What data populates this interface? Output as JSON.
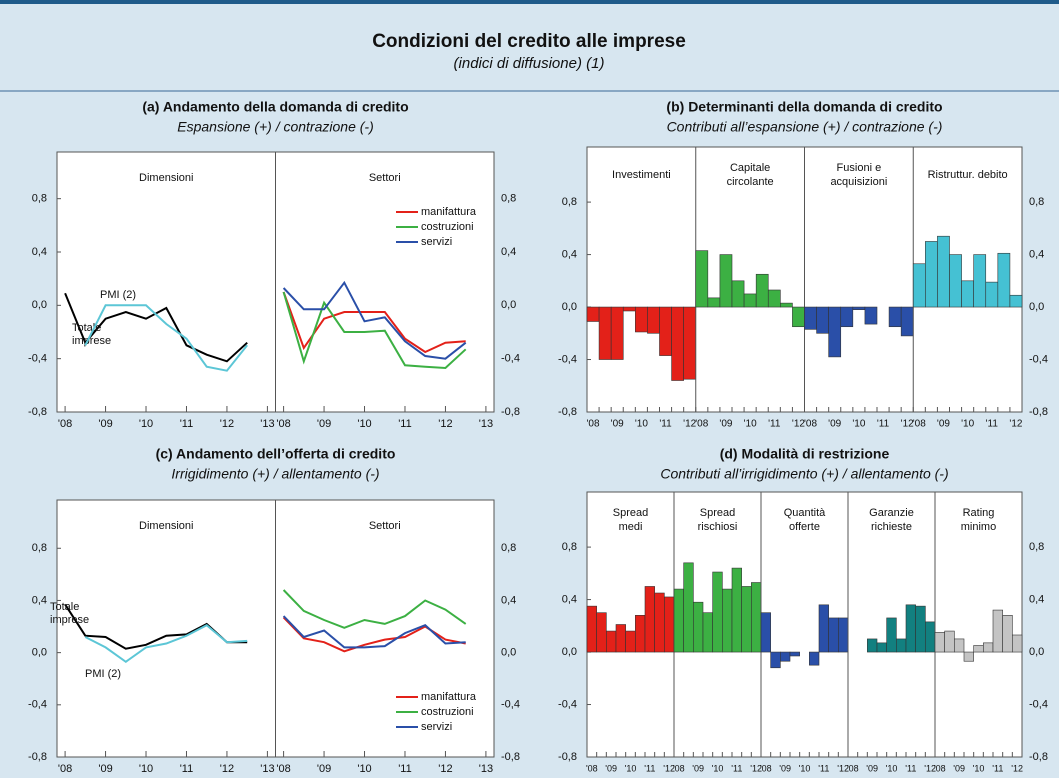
{
  "header": {
    "title": "Condizioni del credito alle imprese",
    "subtitle": "(indici di diffusione) (1)"
  },
  "chart_data": [
    {
      "type": "line",
      "title": "(a) Andamento della domanda di credito",
      "subtitle": "Espansione (+) / contrazione (-)",
      "ylim": [
        -0.8,
        1.15
      ],
      "yticks": [
        {
          "value": -0.8,
          "label": "-0,8"
        },
        {
          "value": -0.4,
          "label": "-0,4"
        },
        {
          "value": 0,
          "label": "0,0"
        },
        {
          "value": 0.4,
          "label": "0,4"
        },
        {
          "value": 0.8,
          "label": "0,8"
        }
      ],
      "xlim": [
        2007.8,
        2013.2
      ],
      "xticks": [
        {
          "value": 2008,
          "label": "'08"
        },
        {
          "value": 2009,
          "label": "'09"
        },
        {
          "value": 2010,
          "label": "'10"
        },
        {
          "value": 2011,
          "label": "'11"
        },
        {
          "value": 2012,
          "label": "'12"
        },
        {
          "value": 2013,
          "label": "'13"
        }
      ],
      "subplots": [
        {
          "label": "Dimensioni",
          "legend": null,
          "x": [
            2008,
            2008.5,
            2009,
            2009.5,
            2010,
            2010.5,
            2011,
            2011.5,
            2012,
            2012.5
          ],
          "series": [
            {
              "name": "Totale imprese",
              "color": "#000000",
              "values": [
                0.09,
                -0.28,
                -0.1,
                -0.05,
                -0.1,
                -0.02,
                -0.3,
                -0.37,
                -0.42,
                -0.28
              ]
            },
            {
              "name": "PMI (2)",
              "color": "#5cc6d6",
              "values": [
                null,
                -0.3,
                0.0,
                0.0,
                0.0,
                -0.14,
                -0.25,
                -0.46,
                -0.49,
                -0.3
              ]
            }
          ]
        },
        {
          "label": "Settori",
          "legend": "upper right",
          "x": [
            2008,
            2008.5,
            2009,
            2009.5,
            2010,
            2010.5,
            2011,
            2011.5,
            2012,
            2012.5
          ],
          "series": [
            {
              "name": "manifattura",
              "color": "#e32119",
              "values": [
                0.1,
                -0.32,
                -0.1,
                -0.05,
                -0.05,
                -0.05,
                -0.25,
                -0.35,
                -0.28,
                -0.27
              ]
            },
            {
              "name": "costruzioni",
              "color": "#3cb043",
              "values": [
                0.1,
                -0.42,
                0.02,
                -0.2,
                -0.2,
                -0.19,
                -0.45,
                -0.46,
                -0.47,
                -0.33
              ]
            },
            {
              "name": "servizi",
              "color": "#2a4fa8",
              "values": [
                0.13,
                -0.03,
                -0.03,
                0.17,
                -0.12,
                -0.09,
                -0.27,
                -0.38,
                -0.4,
                -0.28
              ]
            }
          ]
        }
      ]
    },
    {
      "type": "bar",
      "title": "(b) Determinanti della domanda di credito",
      "subtitle": "Contributi all’espansione (+) / contrazione (-)",
      "ylim": [
        -0.8,
        1.22
      ],
      "yticks": [
        {
          "value": -0.8,
          "label": "-0,8"
        },
        {
          "value": -0.4,
          "label": "-0,4"
        },
        {
          "value": 0,
          "label": "0,0"
        },
        {
          "value": 0.4,
          "label": "0,4"
        },
        {
          "value": 0.8,
          "label": "0,8"
        }
      ],
      "categories": [
        "'08",
        null,
        "'09",
        null,
        "'10",
        null,
        "'11",
        null,
        "'12"
      ],
      "groups": [
        {
          "label": [
            "Investimenti"
          ],
          "color": "#e32119",
          "values": [
            -0.11,
            -0.4,
            -0.4,
            -0.03,
            -0.19,
            -0.2,
            -0.37,
            -0.56,
            -0.55
          ]
        },
        {
          "label": [
            "Capitale",
            "circolante"
          ],
          "color": "#3cb043",
          "values": [
            0.43,
            0.07,
            0.4,
            0.2,
            0.1,
            0.25,
            0.13,
            0.03,
            -0.15
          ]
        },
        {
          "label": [
            "Fusioni e",
            "acquisizioni"
          ],
          "color": "#2a4fa8",
          "values": [
            -0.17,
            -0.2,
            -0.38,
            -0.15,
            -0.02,
            -0.13,
            0.0,
            -0.15,
            -0.22
          ]
        },
        {
          "label": [
            "Ristruttur. debito"
          ],
          "color": "#45c1d3",
          "values": [
            0.33,
            0.5,
            0.54,
            0.4,
            0.2,
            0.4,
            0.19,
            0.41,
            0.09
          ]
        }
      ]
    },
    {
      "type": "line",
      "title": "(c) Andamento dell’offerta di credito",
      "subtitle": "Irrigidimento (+) / allentamento (-)",
      "ylim": [
        -0.8,
        1.17
      ],
      "yticks": [
        {
          "value": -0.8,
          "label": "-0,8"
        },
        {
          "value": -0.4,
          "label": "-0,4"
        },
        {
          "value": 0,
          "label": "0,0"
        },
        {
          "value": 0.4,
          "label": "0,4"
        },
        {
          "value": 0.8,
          "label": "0,8"
        }
      ],
      "xlim": [
        2007.8,
        2013.2
      ],
      "xticks": [
        {
          "value": 2008,
          "label": "'08"
        },
        {
          "value": 2009,
          "label": "'09"
        },
        {
          "value": 2010,
          "label": "'10"
        },
        {
          "value": 2011,
          "label": "'11"
        },
        {
          "value": 2012,
          "label": "'12"
        },
        {
          "value": 2013,
          "label": "'13"
        }
      ],
      "subplots": [
        {
          "label": "Dimensioni",
          "legend": null,
          "x": [
            2008,
            2008.5,
            2009,
            2009.5,
            2010,
            2010.5,
            2011,
            2011.5,
            2012,
            2012.5
          ],
          "series": [
            {
              "name": "Totale imprese",
              "color": "#000000",
              "values": [
                0.37,
                0.13,
                0.12,
                0.03,
                0.06,
                0.13,
                0.14,
                0.22,
                0.08,
                0.08
              ]
            },
            {
              "name": "PMI (2)",
              "color": "#5cc6d6",
              "values": [
                null,
                0.12,
                0.04,
                -0.07,
                0.04,
                0.07,
                0.13,
                0.21,
                0.08,
                0.09
              ]
            }
          ]
        },
        {
          "label": "Settori",
          "legend": "lower right",
          "x": [
            2008,
            2008.5,
            2009,
            2009.5,
            2010,
            2010.5,
            2011,
            2011.5,
            2012,
            2012.5
          ],
          "series": [
            {
              "name": "manifattura",
              "color": "#e32119",
              "values": [
                0.27,
                0.11,
                0.08,
                0.01,
                0.06,
                0.1,
                0.12,
                0.2,
                0.1,
                0.07
              ]
            },
            {
              "name": "costruzioni",
              "color": "#3cb043",
              "values": [
                0.48,
                0.32,
                0.25,
                0.19,
                0.25,
                0.22,
                0.28,
                0.4,
                0.33,
                0.22
              ]
            },
            {
              "name": "servizi",
              "color": "#2a4fa8",
              "values": [
                0.28,
                0.12,
                0.17,
                0.04,
                0.04,
                0.05,
                0.15,
                0.21,
                0.07,
                0.08
              ]
            }
          ]
        }
      ]
    },
    {
      "type": "bar",
      "title": "(d) Modalità di restrizione",
      "subtitle": "Contributi all’irrigidimento (+) / allentamento (-)",
      "ylim": [
        -0.8,
        1.22
      ],
      "yticks": [
        {
          "value": -0.8,
          "label": "-0,8"
        },
        {
          "value": -0.4,
          "label": "-0,4"
        },
        {
          "value": 0,
          "label": "0,0"
        },
        {
          "value": 0.4,
          "label": "0,4"
        },
        {
          "value": 0.8,
          "label": "0,8"
        }
      ],
      "categories": [
        "'08",
        null,
        "'09",
        null,
        "'10",
        null,
        "'11",
        null,
        "'12"
      ],
      "groups": [
        {
          "label": [
            "Spread",
            "medi"
          ],
          "color": "#e32119",
          "values": [
            0.35,
            0.3,
            0.16,
            0.21,
            0.16,
            0.28,
            0.5,
            0.45,
            0.42
          ]
        },
        {
          "label": [
            "Spread",
            "rischiosi"
          ],
          "color": "#3cb043",
          "values": [
            0.48,
            0.68,
            0.38,
            0.3,
            0.61,
            0.48,
            0.64,
            0.5,
            0.53
          ]
        },
        {
          "label": [
            "Quantità",
            "offerte"
          ],
          "color": "#2a4fa8",
          "values": [
            0.3,
            -0.12,
            -0.07,
            -0.03,
            0.0,
            -0.1,
            0.36,
            0.26,
            0.26
          ]
        },
        {
          "label": [
            "Garanzie",
            "richieste"
          ],
          "color": "#128080",
          "values": [
            0.0,
            0.0,
            0.1,
            0.07,
            0.26,
            0.1,
            0.36,
            0.35,
            0.23
          ]
        },
        {
          "label": [
            "Rating",
            "minimo"
          ],
          "color": "#c4c4c4",
          "values": [
            0.15,
            0.16,
            0.1,
            -0.07,
            0.05,
            0.07,
            0.32,
            0.28,
            0.13
          ]
        }
      ]
    }
  ]
}
